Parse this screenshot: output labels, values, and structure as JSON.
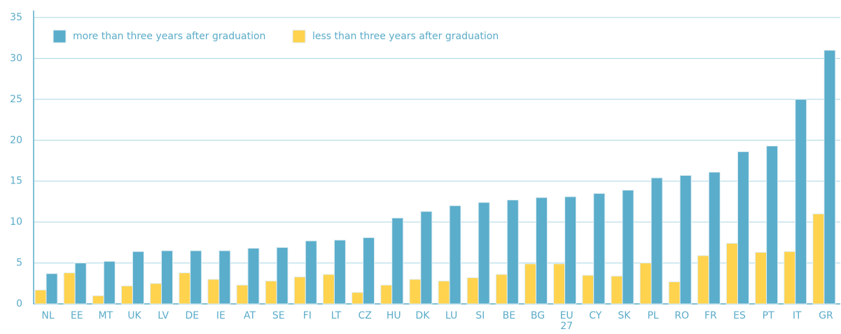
{
  "chart_data": {
    "type": "bar",
    "categories": [
      "NL",
      "EE",
      "MT",
      "UK",
      "LV",
      "DE",
      "IE",
      "AT",
      "SE",
      "FI",
      "LT",
      "CZ",
      "HU",
      "DK",
      "LU",
      "SI",
      "BE",
      "BG",
      "EU 27",
      "CY",
      "SK",
      "PL",
      "RO",
      "FR",
      "ES",
      "PT",
      "IT",
      "GR"
    ],
    "series": [
      {
        "name": "more than three years after graduation",
        "color": "#5aadcb",
        "values": [
          3.7,
          5.0,
          5.2,
          6.4,
          6.5,
          6.5,
          6.5,
          6.8,
          6.9,
          7.7,
          7.8,
          8.1,
          10.5,
          11.3,
          12.0,
          12.4,
          12.7,
          13.0,
          13.1,
          13.5,
          13.9,
          15.4,
          15.7,
          16.1,
          18.6,
          19.3,
          25.0,
          31.0
        ]
      },
      {
        "name": "less than three years after graduation",
        "color": "#ffd34e",
        "values": [
          1.7,
          3.8,
          1.0,
          2.2,
          2.5,
          3.8,
          3.0,
          2.3,
          2.8,
          3.3,
          3.6,
          1.4,
          2.3,
          3.0,
          2.8,
          3.2,
          3.6,
          4.9,
          4.9,
          3.5,
          3.4,
          5.0,
          2.7,
          5.9,
          7.4,
          6.3,
          6.4,
          11.0
        ]
      }
    ],
    "ylim": [
      0,
      35
    ],
    "yticks": [
      0,
      5,
      10,
      15,
      20,
      25,
      30,
      35
    ],
    "grid": true,
    "legend": "top-left"
  }
}
